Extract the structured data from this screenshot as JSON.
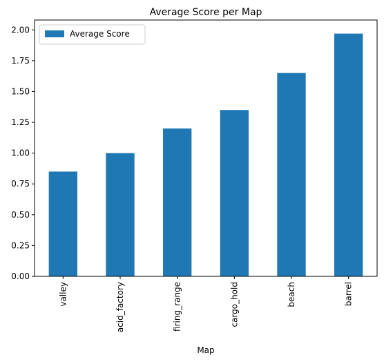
{
  "chart_data": {
    "type": "bar",
    "title": "Average Score per Map",
    "xlabel": "Map",
    "ylabel": "",
    "categories": [
      "valley",
      "acid_factory",
      "firing_range",
      "cargo_hold",
      "beach",
      "barrel"
    ],
    "series": [
      {
        "name": "Average Score",
        "values": [
          0.85,
          1.0,
          1.2,
          1.35,
          1.65,
          1.97
        ],
        "color": "#1f77b4"
      }
    ],
    "ylim": [
      0,
      2.08
    ],
    "yticks": [
      "0.00",
      "0.25",
      "0.50",
      "0.75",
      "1.00",
      "1.25",
      "1.50",
      "1.75",
      "2.00"
    ],
    "grid": false,
    "legend_position": "top-left"
  }
}
